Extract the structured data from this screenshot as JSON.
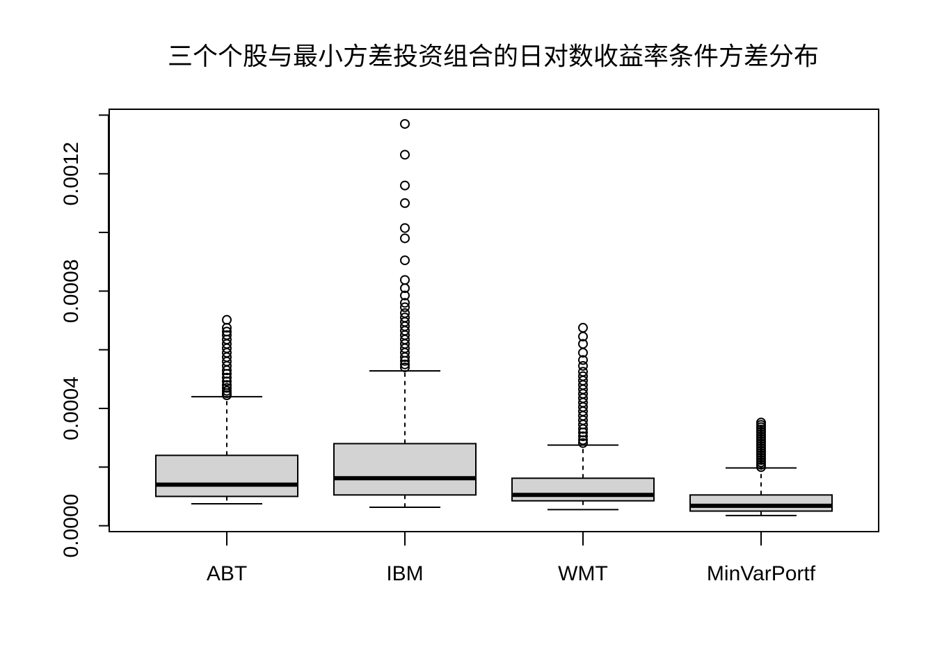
{
  "chart_data": {
    "type": "boxplot",
    "title": "三个个股与最小方差投资组合的日对数收益率条件方差分布",
    "xlabel": "",
    "ylabel": "",
    "ylim": [
      -2e-05,
      0.00142
    ],
    "yticks": [
      0.0,
      0.0002,
      0.0004,
      0.0006,
      0.0008,
      0.001,
      0.0012,
      0.0014
    ],
    "ytick_labels": [
      "0.0000",
      "",
      "0.0004",
      "",
      "0.0008",
      "",
      "0.0012",
      ""
    ],
    "categories": [
      "ABT",
      "IBM",
      "WMT",
      "MinVarPortf"
    ],
    "box_fill": "#d3d3d3",
    "boxes": [
      {
        "name": "ABT",
        "whisker_low": 7.5e-05,
        "q1": 0.0001,
        "median": 0.00014,
        "q3": 0.00024,
        "whisker_high": 0.00044,
        "outliers": [
          0.000445,
          0.000452,
          0.00046,
          0.00047,
          0.00048,
          0.000492,
          0.000505,
          0.000518,
          0.00053,
          0.000545,
          0.00056,
          0.000575,
          0.00059,
          0.000605,
          0.00062,
          0.000635,
          0.00065,
          0.000662,
          0.000675,
          0.000702
        ]
      },
      {
        "name": "IBM",
        "whisker_low": 6.3e-05,
        "q1": 0.000105,
        "median": 0.000162,
        "q3": 0.00028,
        "whisker_high": 0.000528,
        "outliers": [
          0.00054,
          0.00055,
          0.000562,
          0.000575,
          0.00059,
          0.000605,
          0.00062,
          0.000635,
          0.00065,
          0.000665,
          0.00068,
          0.000695,
          0.00071,
          0.000725,
          0.000745,
          0.00076,
          0.000785,
          0.00081,
          0.000838,
          0.000905,
          0.00098,
          0.001015,
          0.0011,
          0.00116,
          0.001265,
          0.00137
        ]
      },
      {
        "name": "WMT",
        "whisker_low": 5.5e-05,
        "q1": 8.5e-05,
        "median": 0.000105,
        "q3": 0.000162,
        "whisker_high": 0.000275,
        "outliers": [
          0.000282,
          0.000292,
          0.000305,
          0.000318,
          0.00033,
          0.000345,
          0.00036,
          0.000375,
          0.00039,
          0.000405,
          0.00042,
          0.000435,
          0.00045,
          0.000465,
          0.00048,
          0.000495,
          0.00051,
          0.000525,
          0.000545,
          0.000565,
          0.00059,
          0.00062,
          0.000645,
          0.000675
        ]
      },
      {
        "name": "MinVarPortf",
        "whisker_low": 3.5e-05,
        "q1": 5e-05,
        "median": 6.8e-05,
        "q3": 0.000105,
        "whisker_high": 0.000197,
        "outliers": [
          0.0002,
          0.000208,
          0.000216,
          0.000224,
          0.000232,
          0.00024,
          0.000248,
          0.000256,
          0.000264,
          0.000272,
          0.00028,
          0.000288,
          0.000296,
          0.000304,
          0.000312,
          0.00032,
          0.000328,
          0.000336,
          0.000344,
          0.000352
        ]
      }
    ]
  }
}
